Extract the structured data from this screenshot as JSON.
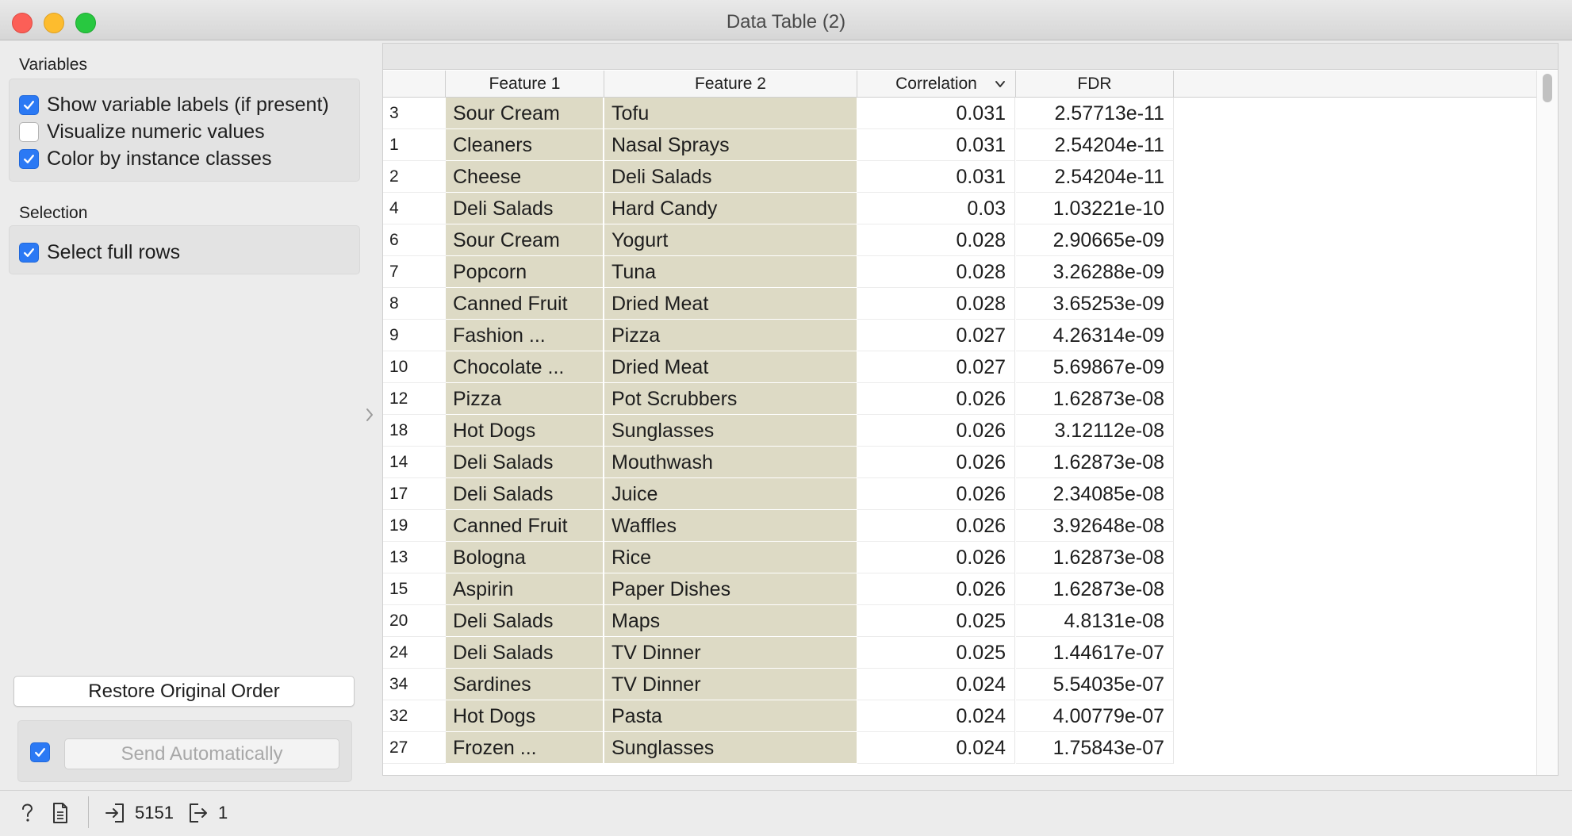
{
  "window": {
    "title": "Data Table (2)"
  },
  "variables": {
    "label": "Variables",
    "show_labels": {
      "label": "Show variable labels (if present)",
      "checked": true
    },
    "visualize_numeric": {
      "label": "Visualize numeric values",
      "checked": false
    },
    "color_by_class": {
      "label": "Color by instance classes",
      "checked": true
    }
  },
  "selection": {
    "label": "Selection",
    "select_full_rows": {
      "label": "Select full rows",
      "checked": true
    }
  },
  "buttons": {
    "restore": "Restore Original Order",
    "send": "Send Automatically",
    "send_checked": true
  },
  "table": {
    "columns": [
      "Feature 1",
      "Feature 2",
      "Correlation",
      "FDR"
    ],
    "sorted_column": "Correlation",
    "feature_bg": "#dddac5",
    "rows": [
      {
        "idx": "3",
        "f1": "Sour Cream",
        "f2": "Tofu",
        "cor": "0.031",
        "fdr": "2.57713e-11"
      },
      {
        "idx": "1",
        "f1": "Cleaners",
        "f2": "Nasal Sprays",
        "cor": "0.031",
        "fdr": "2.54204e-11"
      },
      {
        "idx": "2",
        "f1": "Cheese",
        "f2": "Deli Salads",
        "cor": "0.031",
        "fdr": "2.54204e-11"
      },
      {
        "idx": "4",
        "f1": "Deli Salads",
        "f2": "Hard Candy",
        "cor": "0.03",
        "fdr": "1.03221e-10"
      },
      {
        "idx": "6",
        "f1": "Sour Cream",
        "f2": "Yogurt",
        "cor": "0.028",
        "fdr": "2.90665e-09"
      },
      {
        "idx": "7",
        "f1": "Popcorn",
        "f2": "Tuna",
        "cor": "0.028",
        "fdr": "3.26288e-09"
      },
      {
        "idx": "8",
        "f1": "Canned Fruit",
        "f2": "Dried Meat",
        "cor": "0.028",
        "fdr": "3.65253e-09"
      },
      {
        "idx": "9",
        "f1": "Fashion ...",
        "f2": "Pizza",
        "cor": "0.027",
        "fdr": "4.26314e-09"
      },
      {
        "idx": "10",
        "f1": "Chocolate ...",
        "f2": "Dried Meat",
        "cor": "0.027",
        "fdr": "5.69867e-09"
      },
      {
        "idx": "12",
        "f1": "Pizza",
        "f2": "Pot Scrubbers",
        "cor": "0.026",
        "fdr": "1.62873e-08"
      },
      {
        "idx": "18",
        "f1": "Hot Dogs",
        "f2": "Sunglasses",
        "cor": "0.026",
        "fdr": "3.12112e-08"
      },
      {
        "idx": "14",
        "f1": "Deli Salads",
        "f2": "Mouthwash",
        "cor": "0.026",
        "fdr": "1.62873e-08"
      },
      {
        "idx": "17",
        "f1": "Deli Salads",
        "f2": "Juice",
        "cor": "0.026",
        "fdr": "2.34085e-08"
      },
      {
        "idx": "19",
        "f1": "Canned Fruit",
        "f2": "Waffles",
        "cor": "0.026",
        "fdr": "3.92648e-08"
      },
      {
        "idx": "13",
        "f1": "Bologna",
        "f2": "Rice",
        "cor": "0.026",
        "fdr": "1.62873e-08"
      },
      {
        "idx": "15",
        "f1": "Aspirin",
        "f2": "Paper Dishes",
        "cor": "0.026",
        "fdr": "1.62873e-08"
      },
      {
        "idx": "20",
        "f1": "Deli Salads",
        "f2": "Maps",
        "cor": "0.025",
        "fdr": "4.8131e-08"
      },
      {
        "idx": "24",
        "f1": "Deli Salads",
        "f2": "TV Dinner",
        "cor": "0.025",
        "fdr": "1.44617e-07"
      },
      {
        "idx": "34",
        "f1": "Sardines",
        "f2": "TV Dinner",
        "cor": "0.024",
        "fdr": "5.54035e-07"
      },
      {
        "idx": "32",
        "f1": "Hot Dogs",
        "f2": "Pasta",
        "cor": "0.024",
        "fdr": "4.00779e-07"
      },
      {
        "idx": "27",
        "f1": "Frozen ...",
        "f2": "Sunglasses",
        "cor": "0.024",
        "fdr": "1.75843e-07"
      }
    ]
  },
  "status": {
    "input_count": "5151",
    "output_count": "1"
  }
}
